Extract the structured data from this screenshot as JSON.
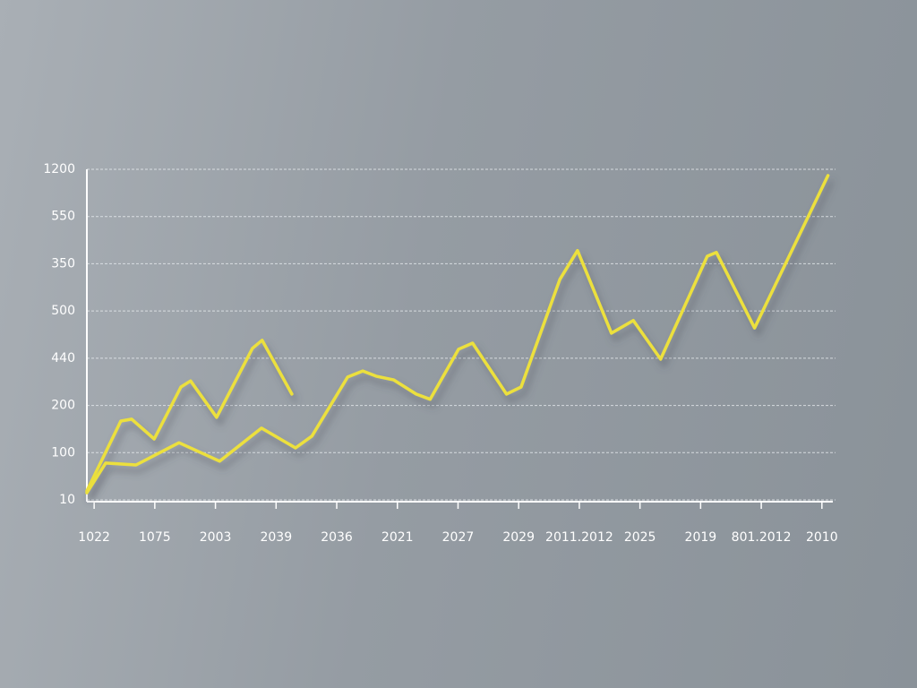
{
  "chart_data": {
    "type": "line",
    "categories": [
      "1022",
      "1075",
      "2003",
      "2039",
      "2036",
      "2021",
      "2027",
      "2029",
      "2011.2012",
      "2025",
      "2019",
      "801.2012",
      "2010"
    ],
    "xlim": [
      -0.12,
      12.18
    ],
    "ylim": [
      0,
      7
    ],
    "yticks": [
      {
        "value": 0,
        "label": "10"
      },
      {
        "value": 1,
        "label": "100"
      },
      {
        "value": 2,
        "label": "200"
      },
      {
        "value": 3,
        "label": "440"
      },
      {
        "value": 4,
        "label": "500"
      },
      {
        "value": 5,
        "label": "350"
      },
      {
        "value": 6,
        "label": "550"
      },
      {
        "value": 7,
        "label": "1200"
      }
    ],
    "grid": true,
    "series": [
      {
        "color": "#ece03e",
        "x": [
          -0.12,
          0.44,
          0.62,
          0.99,
          1.43,
          1.59,
          2.02,
          2.61,
          2.77,
          3.26
        ],
        "values": [
          0.19,
          1.67,
          1.71,
          1.29,
          2.39,
          2.52,
          1.75,
          3.21,
          3.38,
          2.24
        ]
      },
      {
        "color": "#ece03e",
        "x": [
          -0.12,
          0.19,
          0.69,
          1.4,
          2.07,
          2.76,
          3.32,
          3.59,
          4.18,
          4.43,
          4.65,
          4.94,
          5.31,
          5.54,
          6.01,
          6.24,
          6.8,
          7.04,
          7.68,
          7.97,
          8.53,
          8.89,
          9.34,
          10.11,
          10.26,
          10.89,
          12.1
        ],
        "values": [
          0.15,
          0.78,
          0.74,
          1.21,
          0.82,
          1.52,
          1.1,
          1.35,
          2.6,
          2.73,
          2.62,
          2.54,
          2.24,
          2.13,
          3.19,
          3.32,
          2.24,
          2.39,
          4.67,
          5.28,
          3.53,
          3.8,
          2.98,
          5.16,
          5.24,
          3.64,
          6.87
        ]
      }
    ]
  }
}
